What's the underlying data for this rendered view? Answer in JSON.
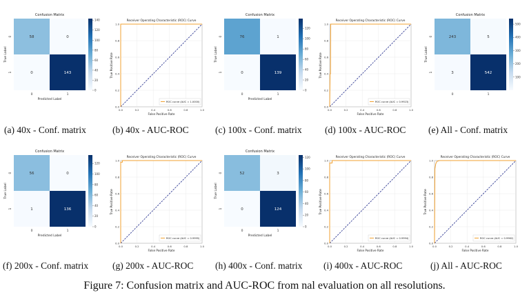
{
  "figure_caption": "Figure 7: Confusion matrix and AUC-ROC from  nal evaluation on all resolutions.",
  "chart_data": [
    {
      "type": "heatmap",
      "id": "p0",
      "caption": "(a) 40x - Conf. matrix",
      "title": "Confusion Matrix",
      "xlabel": "Predicted Label",
      "ylabel": "True Label",
      "tick_labels": [
        "0",
        "1"
      ],
      "matrix": [
        [
          58,
          0
        ],
        [
          0,
          143
        ]
      ],
      "colorbar_ticks": [
        "0",
        "20",
        "40",
        "60",
        "80",
        "100",
        "120",
        "140"
      ],
      "vmax": 143
    },
    {
      "type": "line",
      "id": "p1",
      "caption": "(b) 40x - AUC-ROC",
      "title": "Receiver Operating Characteristic (ROC) Curve",
      "xlabel": "False Positive Rate",
      "ylabel": "True Positive Rate",
      "ticks": [
        "0.0",
        "0.2",
        "0.4",
        "0.6",
        "0.8",
        "1.0"
      ],
      "legend": "ROC curve (AUC = 1.0000)",
      "roc": [
        [
          0,
          0
        ],
        [
          0,
          1
        ],
        [
          1,
          1
        ]
      ],
      "xlim": [
        0,
        1
      ],
      "ylim": [
        0,
        1
      ]
    },
    {
      "type": "heatmap",
      "id": "p2",
      "caption": "(c) 100x - Conf. matrix",
      "title": "Confusion Matrix",
      "xlabel": "Predicted Label",
      "ylabel": "True Label",
      "tick_labels": [
        "0",
        "1"
      ],
      "matrix": [
        [
          76,
          1
        ],
        [
          0,
          139
        ]
      ],
      "colorbar_ticks": [
        "0",
        "20",
        "40",
        "60",
        "80",
        "100",
        "120"
      ],
      "vmax": 139
    },
    {
      "type": "line",
      "id": "p3",
      "caption": "(d) 100x - AUC-ROC",
      "title": "Receiver Operating Characteristic (ROC) Curve",
      "xlabel": "False Positive Rate",
      "ylabel": "True Positive Rate",
      "ticks": [
        "0.0",
        "0.2",
        "0.4",
        "0.6",
        "0.8",
        "1.0"
      ],
      "legend": "ROC curve (AUC = 0.9923)",
      "roc": [
        [
          0,
          0
        ],
        [
          0.005,
          0.4
        ],
        [
          0.01,
          0.4
        ],
        [
          0.013,
          1
        ],
        [
          1,
          1
        ]
      ],
      "xlim": [
        0,
        1
      ],
      "ylim": [
        0,
        1
      ]
    },
    {
      "type": "heatmap",
      "id": "p4",
      "caption": "(e) All - Conf. matrix",
      "title": "Confusion Matrix",
      "xlabel": "",
      "ylabel": "True Label",
      "tick_labels": [
        "0",
        "1"
      ],
      "matrix": [
        [
          243,
          5
        ],
        [
          3,
          542
        ]
      ],
      "colorbar_ticks": [
        "100",
        "200",
        "300",
        "400",
        "500"
      ],
      "vmax": 542
    },
    {
      "type": "heatmap",
      "id": "p5",
      "caption": "(f) 200x - Conf. matrix",
      "title": "Confusion Matrix",
      "xlabel": "Predicted Label",
      "ylabel": "True Label",
      "tick_labels": [
        "0",
        "1"
      ],
      "matrix": [
        [
          56,
          0
        ],
        [
          1,
          136
        ]
      ],
      "colorbar_ticks": [
        "0",
        "20",
        "40",
        "60",
        "80",
        "100",
        "120"
      ],
      "vmax": 136
    },
    {
      "type": "line",
      "id": "p6",
      "caption": "(g) 200x - AUC-ROC",
      "title": "Receiver Operating Characteristic (ROC) Curve",
      "xlabel": "False Positive Rate",
      "ylabel": "True Positive Rate",
      "ticks": [
        "0.0",
        "0.2",
        "0.4",
        "0.6",
        "0.8",
        "1.0"
      ],
      "legend": "ROC curve (AUC = 0.9995)",
      "roc": [
        [
          0,
          0
        ],
        [
          0,
          0.98
        ],
        [
          0.02,
          0.98
        ],
        [
          0.02,
          1
        ],
        [
          1,
          1
        ]
      ],
      "xlim": [
        0,
        1
      ],
      "ylim": [
        0,
        1
      ]
    },
    {
      "type": "heatmap",
      "id": "p7",
      "caption": "(h) 400x - Conf. matrix",
      "title": "Confusion Matrix",
      "xlabel": "Predicted Label",
      "ylabel": "True Label",
      "tick_labels": [
        "0",
        "1"
      ],
      "matrix": [
        [
          52,
          3
        ],
        [
          0,
          124
        ]
      ],
      "colorbar_ticks": [
        "0",
        "20",
        "40",
        "60",
        "80",
        "100",
        "120"
      ],
      "vmax": 124
    },
    {
      "type": "line",
      "id": "p8",
      "caption": "(i) 400x - AUC-ROC",
      "title": "Receiver Operating Characteristic (ROC) Curve",
      "xlabel": "False Positive Rate",
      "ylabel": "True Positive Rate",
      "ticks": [
        "0.0",
        "0.2",
        "0.4",
        "0.6",
        "0.8",
        "1.0"
      ],
      "legend": "ROC curve (AUC = 0.9994)",
      "roc": [
        [
          0,
          0
        ],
        [
          0,
          0.97
        ],
        [
          0.03,
          0.97
        ],
        [
          0.03,
          1
        ],
        [
          1,
          1
        ]
      ],
      "xlim": [
        0,
        1
      ],
      "ylim": [
        0,
        1
      ]
    },
    {
      "type": "line",
      "id": "p9",
      "caption": "(j) All - AUC-ROC",
      "title": "Receiver Operating Characteristic (ROC) Curve",
      "xlabel": "False Positive Rate",
      "ylabel": "True Positive Rate",
      "ticks": [
        "0.0",
        "0.2",
        "0.4",
        "0.6",
        "0.8",
        "1.0"
      ],
      "legend": "ROC curve (AUC = 0.9962)",
      "roc": [
        [
          0,
          0
        ],
        [
          0.005,
          0.9
        ],
        [
          0.015,
          0.96
        ],
        [
          0.03,
          0.99
        ],
        [
          0.06,
          1
        ],
        [
          1,
          1
        ]
      ],
      "xlim": [
        0,
        1
      ],
      "ylim": [
        0,
        1
      ]
    }
  ]
}
